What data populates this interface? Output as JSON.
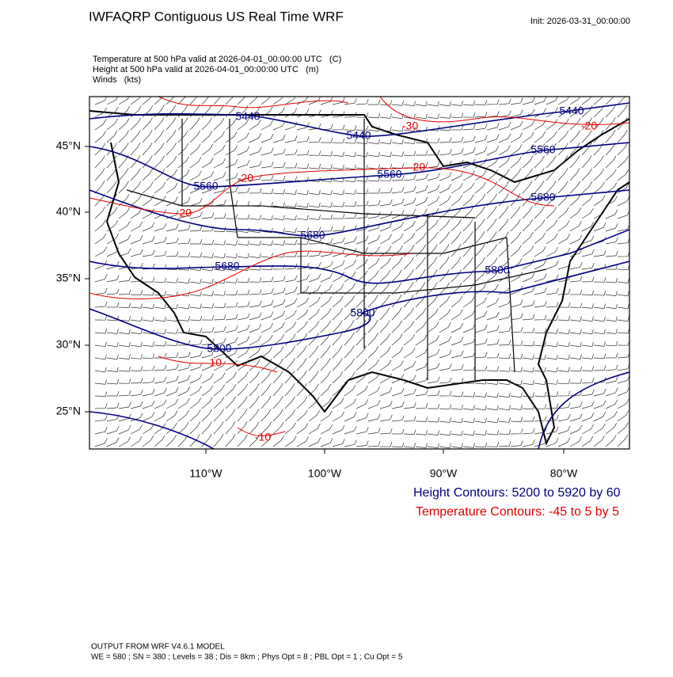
{
  "header": {
    "title": "IWFAQRP Contiguous US Real Time WRF",
    "init": "Init: 2026-03-31_00:00:00"
  },
  "fields": [
    "Temperature at 500 hPa valid at 2026-04-01_00:00:00 UTC   (C)",
    "Height at 500 hPa valid at 2026-04-01_00:00:00 UTC   (m)",
    "Winds   (kts)"
  ],
  "map": {
    "lat_labels": [
      "45°N",
      "40°N",
      "35°N",
      "30°N",
      "25°N"
    ],
    "lon_labels": [
      "110°W",
      "100°W",
      "90°W",
      "80°W"
    ],
    "height_labels": [
      "5440",
      "5440",
      "5440",
      "5560",
      "5560",
      "5560",
      "5680",
      "5680",
      "5680",
      "5800",
      "5800",
      "5800"
    ],
    "temp_labels": [
      "-30",
      "-20",
      "-20",
      "-20",
      "-20",
      "-10",
      "-10"
    ]
  },
  "legend": {
    "height": "Height Contours: 5200 to 5920 by 60",
    "temperature": "Temperature Contours: -45 to 5 by 5"
  },
  "footer": {
    "line1": "OUTPUT FROM WRF V4.6.1 MODEL",
    "line2": "WE = 580 ; SN = 380 ; Levels = 38 ; Dis = 8km ; Phys Opt = 8 ; PBL Opt = 1 ; Cu Opt = 5"
  }
}
